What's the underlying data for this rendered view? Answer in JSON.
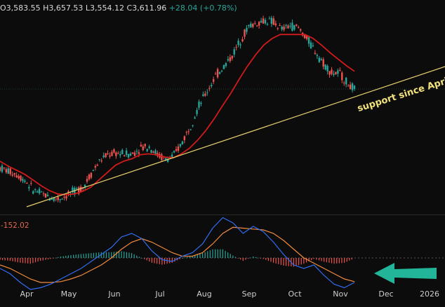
{
  "header": {
    "open": "O3,583.55",
    "high": "H3,657.53",
    "low": "L3,554.12",
    "close": "C3,611.96",
    "change": "+28.04 (+0.78%)"
  },
  "macd_panel": {
    "value_label": "-152.02"
  },
  "annotation": {
    "text": "support since April"
  },
  "colors": {
    "background": "#0c0c0c",
    "up": "#26a69a",
    "down": "#ef5350",
    "ma": "#d11a1a",
    "trendline": "#e6cf6a",
    "macd": "#2f6df0",
    "signal": "#f08a3c",
    "arrow": "#23b59a"
  },
  "chart_data": {
    "type": "line",
    "title": "",
    "xlabel": "",
    "ylabel": "",
    "x_ticks": [
      "Apr",
      "May",
      "Jun",
      "Jul",
      "Aug",
      "Sep",
      "Oct",
      "Nov",
      "Dec",
      "2026"
    ],
    "series": [
      {
        "values": [
          2620,
          2580,
          2540,
          2470,
          2350,
          2300,
          2260,
          2240,
          2280,
          2330,
          2380,
          2550,
          2700,
          2780,
          2800,
          2790,
          2790,
          2870,
          2880,
          2780,
          2720,
          2770,
          2940,
          3140,
          3380,
          3560,
          3740,
          3860,
          3990,
          4180,
          4350,
          4390,
          4420,
          4400,
          4310,
          4360,
          4330,
          4200,
          4050,
          3900,
          3780,
          3770,
          3640,
          3560
        ]
      },
      {
        "values": [
          2700,
          2640,
          2590,
          2540,
          2470,
          2400,
          2340,
          2300,
          2290,
          2300,
          2330,
          2380,
          2470,
          2560,
          2650,
          2700,
          2730,
          2780,
          2790,
          2780,
          2750,
          2740,
          2790,
          2860,
          2960,
          3080,
          3220,
          3380,
          3530,
          3700,
          3860,
          4000,
          4120,
          4200,
          4250,
          4250,
          4250,
          4250,
          4200,
          4120,
          4030,
          3950,
          3870,
          3800
        ]
      }
    ],
    "trendline": {
      "label": "support since April"
    },
    "macd": {
      "macd": [
        -60,
        -90,
        -140,
        -180,
        -170,
        -150,
        -120,
        -90,
        -60,
        -20,
        20,
        60,
        120,
        140,
        110,
        40,
        -10,
        -20,
        10,
        30,
        80,
        170,
        230,
        200,
        140,
        180,
        150,
        90,
        20,
        -40,
        -60,
        -40,
        -100,
        -150,
        -170,
        -140
      ],
      "signal": [
        -40,
        -60,
        -90,
        -120,
        -140,
        -140,
        -135,
        -120,
        -100,
        -70,
        -40,
        0,
        50,
        90,
        110,
        90,
        60,
        30,
        10,
        10,
        30,
        80,
        140,
        175,
        170,
        165,
        160,
        140,
        100,
        50,
        0,
        -30,
        -60,
        -90,
        -120,
        -135
      ],
      "value": -152.02
    }
  }
}
